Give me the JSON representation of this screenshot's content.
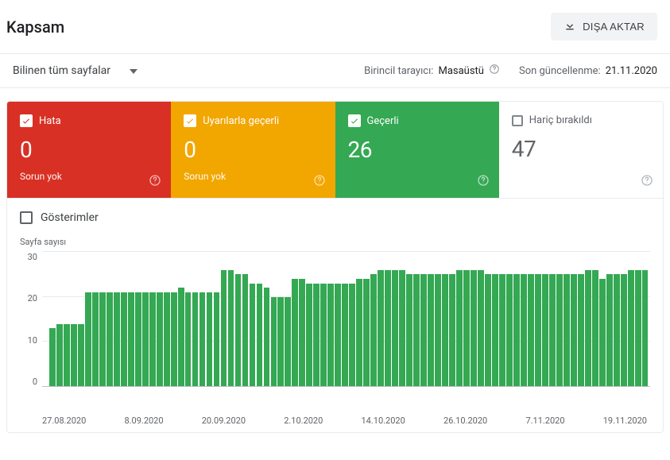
{
  "header": {
    "title": "Kapsam",
    "export_label": "DIŞA AKTAR"
  },
  "subbar": {
    "dropdown_label": "Bilinen tüm sayfalar",
    "crawler_label": "Birincil tarayıcı:",
    "crawler_value": "Masaüstü",
    "updated_label": "Son güncellenme:",
    "updated_value": "21.11.2020"
  },
  "cards": [
    {
      "label": "Hata",
      "value": "0",
      "sub": "Sorun yok",
      "bg": "#d93025",
      "check_fill": "#d93025",
      "checked": true
    },
    {
      "label": "Uyarılarla geçerli",
      "value": "0",
      "sub": "Sorun yok",
      "bg": "#f2a600",
      "check_fill": "#f2a600",
      "checked": true
    },
    {
      "label": "Geçerli",
      "value": "26",
      "sub": "",
      "bg": "#34a853",
      "check_fill": "#34a853",
      "checked": true
    },
    {
      "label": "Hariç bırakıldı",
      "value": "47",
      "sub": "",
      "bg": "#ffffff",
      "check_fill": "",
      "checked": false
    }
  ],
  "impressions_label": "Gösterimler",
  "chart": {
    "y_title": "Sayfa sayısı",
    "type": "bar",
    "ylim": [
      0,
      30
    ],
    "yticks": [
      30,
      20,
      10,
      0
    ],
    "bar_color": "#34a853",
    "grid_color": "#e8eaed",
    "background_color": "#ffffff",
    "x_labels": [
      "27.08.2020",
      "8.09.2020",
      "20.09.2020",
      "2.10.2020",
      "14.10.2020",
      "26.10.2020",
      "7.11.2020",
      "19.11.2020"
    ],
    "values": [
      0,
      13,
      14,
      14,
      14,
      14,
      21,
      21,
      21,
      21,
      21,
      21,
      21,
      21,
      21,
      21,
      21,
      21,
      21,
      22,
      21,
      21,
      21,
      21,
      21,
      26,
      26,
      25,
      25,
      23,
      23,
      22,
      20,
      20,
      20,
      24,
      24,
      23,
      23,
      23,
      23,
      23,
      23,
      23,
      24,
      24,
      25,
      26,
      26,
      26,
      26,
      25,
      25,
      25,
      25,
      25,
      25,
      25,
      26,
      26,
      26,
      26,
      25,
      25,
      25,
      25,
      25,
      25,
      25,
      25,
      25,
      25,
      25,
      25,
      25,
      25,
      26,
      26,
      24,
      25,
      25,
      25,
      26,
      26,
      26
    ]
  }
}
